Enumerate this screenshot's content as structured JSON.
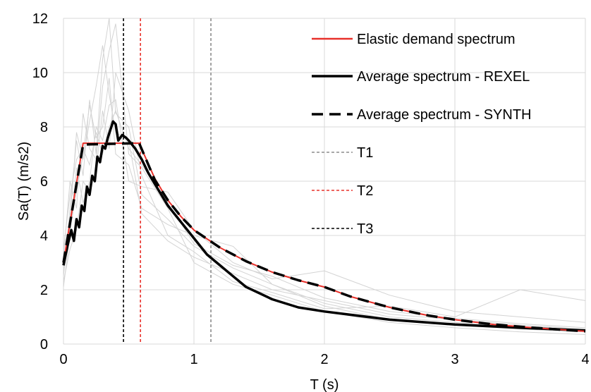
{
  "chart_data": {
    "type": "line",
    "title": "",
    "xlabel": "T (s)",
    "ylabel": "Sa(T) (m/s2)",
    "xlim": [
      0,
      4
    ],
    "ylim": [
      0,
      12
    ],
    "xticks": [
      "0",
      "1",
      "2",
      "3",
      "4"
    ],
    "yticks": [
      "0",
      "2",
      "4",
      "6",
      "8",
      "10",
      "12"
    ],
    "grid": true,
    "legend_position": "top-right",
    "series": [
      {
        "name": "Elastic demand spectrum",
        "color": "#e8302a",
        "style": "solid",
        "x": [
          0,
          0.15,
          0.58,
          0.7,
          0.8,
          0.9,
          1.0,
          1.2,
          1.4,
          1.6,
          1.8,
          2.0,
          2.2,
          2.5,
          2.8,
          3.0,
          3.3,
          3.6,
          4.0
        ],
        "y": [
          3.0,
          7.4,
          7.4,
          6.1,
          5.3,
          4.7,
          4.2,
          3.55,
          3.05,
          2.65,
          2.35,
          2.1,
          1.75,
          1.35,
          1.05,
          0.9,
          0.72,
          0.6,
          0.47
        ]
      },
      {
        "name": "Average spectrum - REXEL",
        "color": "#000000",
        "style": "solid",
        "x": [
          0,
          0.03,
          0.06,
          0.08,
          0.1,
          0.12,
          0.14,
          0.16,
          0.18,
          0.2,
          0.22,
          0.24,
          0.26,
          0.28,
          0.3,
          0.32,
          0.34,
          0.36,
          0.38,
          0.4,
          0.42,
          0.45,
          0.48,
          0.5,
          0.55,
          0.6,
          0.65,
          0.7,
          0.8,
          0.9,
          1.0,
          1.1,
          1.2,
          1.3,
          1.4,
          1.6,
          1.8,
          2.0,
          2.5,
          3.0,
          3.5,
          4.0
        ],
        "y": [
          2.9,
          3.6,
          4.2,
          3.8,
          4.6,
          4.3,
          5.1,
          4.9,
          5.8,
          5.5,
          6.2,
          6.0,
          6.9,
          6.7,
          7.3,
          7.2,
          7.6,
          7.9,
          8.2,
          8.1,
          7.5,
          7.7,
          7.6,
          7.5,
          7.2,
          6.8,
          6.3,
          5.9,
          5.1,
          4.5,
          3.9,
          3.3,
          2.9,
          2.5,
          2.1,
          1.65,
          1.35,
          1.2,
          0.9,
          0.72,
          0.6,
          0.5
        ]
      },
      {
        "name": "Average spectrum - SYNTH",
        "color": "#000000",
        "style": "dashed",
        "x": [
          0,
          0.15,
          0.58,
          0.7,
          0.8,
          0.9,
          1.0,
          1.2,
          1.4,
          1.6,
          1.8,
          2.0,
          2.2,
          2.5,
          2.8,
          3.0,
          3.3,
          3.6,
          4.0
        ],
        "y": [
          3.0,
          7.35,
          7.4,
          6.05,
          5.3,
          4.7,
          4.2,
          3.55,
          3.05,
          2.65,
          2.35,
          2.1,
          1.75,
          1.35,
          1.05,
          0.9,
          0.72,
          0.6,
          0.47
        ]
      },
      {
        "name": "T1",
        "color": "#8c8c8c",
        "style": "dotted",
        "vline": 1.13
      },
      {
        "name": "T2",
        "color": "#e8302a",
        "style": "dotted",
        "vline": 0.59
      },
      {
        "name": "T3",
        "color": "#000000",
        "style": "dotted",
        "vline": 0.46
      }
    ],
    "background_records": [
      {
        "color": "#d3d3d3",
        "x": [
          0,
          0.05,
          0.1,
          0.15,
          0.2,
          0.25,
          0.3,
          0.35,
          0.4,
          0.5,
          0.6,
          0.8,
          1.0,
          1.3,
          1.6,
          2.0,
          2.5,
          3.0,
          3.5,
          4.0
        ],
        "y": [
          2.5,
          5.0,
          7.5,
          6.2,
          9.0,
          7.0,
          10.5,
          12.0,
          8.5,
          8.0,
          5.5,
          4.6,
          3.6,
          2.8,
          2.2,
          1.5,
          1.0,
          0.8,
          0.6,
          0.5
        ]
      },
      {
        "color": "#d3d3d3",
        "x": [
          0,
          0.05,
          0.1,
          0.15,
          0.2,
          0.25,
          0.3,
          0.35,
          0.4,
          0.5,
          0.6,
          0.8,
          1.0,
          1.3,
          1.6,
          2.0,
          2.5,
          3.0,
          3.5,
          4.0
        ],
        "y": [
          3.2,
          6.0,
          5.0,
          8.5,
          7.2,
          6.8,
          9.5,
          10.8,
          11.8,
          7.0,
          6.5,
          5.0,
          3.0,
          2.2,
          1.8,
          1.2,
          0.8,
          0.6,
          0.45,
          0.35
        ]
      },
      {
        "color": "#d3d3d3",
        "x": [
          0,
          0.05,
          0.1,
          0.15,
          0.2,
          0.25,
          0.3,
          0.35,
          0.4,
          0.5,
          0.6,
          0.8,
          1.0,
          1.3,
          1.6,
          2.0,
          2.5,
          3.0,
          3.5,
          4.0
        ],
        "y": [
          2.1,
          4.0,
          6.5,
          5.2,
          6.0,
          8.0,
          7.5,
          8.8,
          9.0,
          6.0,
          5.8,
          5.6,
          4.2,
          3.0,
          2.4,
          2.7,
          1.8,
          1.2,
          1.0,
          0.8
        ]
      },
      {
        "color": "#d3d3d3",
        "x": [
          0,
          0.05,
          0.1,
          0.15,
          0.2,
          0.25,
          0.3,
          0.35,
          0.4,
          0.5,
          0.6,
          0.8,
          1.0,
          1.3,
          1.6,
          2.0,
          2.5,
          3.0,
          3.5,
          4.0
        ],
        "y": [
          2.8,
          4.5,
          7.8,
          6.8,
          8.2,
          9.5,
          11.0,
          9.2,
          7.8,
          7.5,
          4.8,
          3.8,
          3.2,
          2.6,
          2.0,
          1.6,
          1.1,
          0.9,
          0.7,
          0.55
        ]
      },
      {
        "color": "#d3d3d3",
        "x": [
          0,
          0.05,
          0.1,
          0.15,
          0.2,
          0.25,
          0.3,
          0.35,
          0.4,
          0.5,
          0.6,
          0.8,
          1.0,
          1.3,
          1.6,
          2.0,
          2.5,
          3.0,
          3.5,
          4.0
        ],
        "y": [
          2.3,
          3.5,
          4.2,
          6.0,
          5.6,
          6.4,
          8.6,
          7.2,
          10.0,
          8.6,
          6.2,
          4.0,
          3.4,
          2.3,
          1.9,
          1.3,
          1.4,
          1.0,
          2.0,
          1.6
        ]
      },
      {
        "color": "#d3d3d3",
        "x": [
          0,
          0.05,
          0.1,
          0.15,
          0.2,
          0.25,
          0.3,
          0.35,
          0.4,
          0.5,
          0.6,
          0.8,
          1.0,
          1.3,
          1.6,
          2.0,
          2.5,
          3.0,
          3.5,
          4.0
        ],
        "y": [
          3.5,
          5.5,
          6.8,
          7.2,
          6.6,
          7.8,
          7.0,
          8.0,
          8.6,
          7.2,
          6.6,
          5.2,
          3.7,
          2.9,
          2.5,
          1.7,
          1.2,
          0.95,
          0.75,
          0.6
        ]
      },
      {
        "color": "#d3d3d3",
        "x": [
          0,
          0.05,
          0.1,
          0.15,
          0.2,
          0.25,
          0.3,
          0.35,
          0.4,
          0.5,
          0.6,
          0.8,
          1.0,
          1.3,
          1.6,
          2.0,
          2.5,
          3.0,
          3.5,
          4.0
        ],
        "y": [
          2.6,
          4.2,
          5.6,
          7.0,
          8.8,
          7.6,
          8.0,
          9.8,
          7.0,
          6.6,
          5.0,
          4.4,
          4.0,
          3.6,
          2.2,
          1.4,
          0.9,
          0.7,
          0.55,
          0.45
        ]
      }
    ]
  }
}
